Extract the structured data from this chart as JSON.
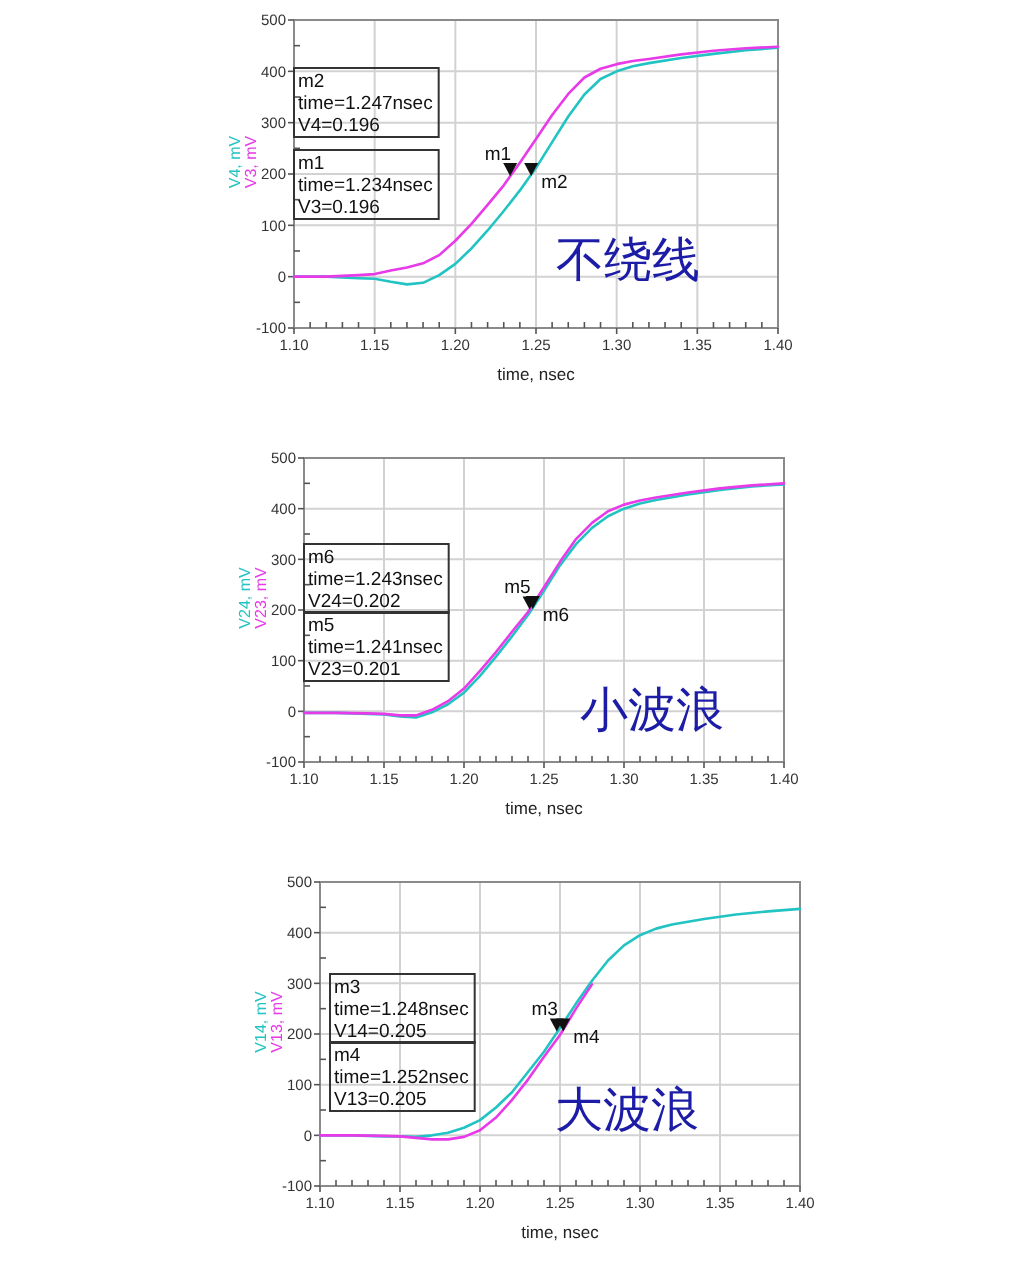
{
  "chart_data": [
    {
      "type": "line",
      "xlabel": "time, nsec",
      "legend": "left",
      "grid": true,
      "xlim": [
        1.1,
        1.4
      ],
      "ylim": [
        -100,
        500
      ],
      "xticks": [
        {
          "value": 1.1,
          "label": "1.10"
        },
        {
          "value": 1.11,
          "label": null
        },
        {
          "value": 1.12,
          "label": null
        },
        {
          "value": 1.13,
          "label": null
        },
        {
          "value": 1.14,
          "label": null
        },
        {
          "value": 1.15,
          "label": "1.15"
        },
        {
          "value": 1.16,
          "label": null
        },
        {
          "value": 1.17,
          "label": null
        },
        {
          "value": 1.18,
          "label": null
        },
        {
          "value": 1.19,
          "label": null
        },
        {
          "value": 1.2,
          "label": "1.20"
        },
        {
          "value": 1.21,
          "label": null
        },
        {
          "value": 1.22,
          "label": null
        },
        {
          "value": 1.23,
          "label": null
        },
        {
          "value": 1.24,
          "label": null
        },
        {
          "value": 1.25,
          "label": "1.25"
        },
        {
          "value": 1.26,
          "label": null
        },
        {
          "value": 1.27,
          "label": null
        },
        {
          "value": 1.28,
          "label": null
        },
        {
          "value": 1.29,
          "label": null
        },
        {
          "value": 1.3,
          "label": "1.30"
        },
        {
          "value": 1.31,
          "label": null
        },
        {
          "value": 1.32,
          "label": null
        },
        {
          "value": 1.33,
          "label": null
        },
        {
          "value": 1.34,
          "label": null
        },
        {
          "value": 1.35,
          "label": "1.35"
        },
        {
          "value": 1.36,
          "label": null
        },
        {
          "value": 1.37,
          "label": null
        },
        {
          "value": 1.38,
          "label": null
        },
        {
          "value": 1.39,
          "label": null
        },
        {
          "value": 1.4,
          "label": "1.40"
        }
      ],
      "yticks": [
        -100,
        {
          "value": -50,
          "label": null
        },
        0,
        {
          "value": 50,
          "label": null
        },
        100,
        {
          "value": 150,
          "label": null
        },
        200,
        {
          "value": 250,
          "label": null
        },
        300,
        {
          "value": 350,
          "label": null
        },
        400,
        {
          "value": 450,
          "label": null
        },
        500
      ],
      "x": [
        1.1,
        1.12,
        1.14,
        1.15,
        1.16,
        1.17,
        1.18,
        1.19,
        1.2,
        1.21,
        1.22,
        1.23,
        1.24,
        1.25,
        1.26,
        1.27,
        1.28,
        1.29,
        1.3,
        1.31,
        1.32,
        1.34,
        1.36,
        1.38,
        1.4
      ],
      "series": [
        {
          "name": "V4, mV",
          "color": "#22c3c3",
          "values": [
            0,
            0,
            -3,
            -4,
            -10,
            -15,
            -12,
            3,
            25,
            55,
            90,
            128,
            168,
            212,
            262,
            312,
            355,
            385,
            400,
            410,
            416,
            426,
            434,
            441,
            446
          ]
        },
        {
          "name": "V3, mV",
          "color": "#e83ae8",
          "values": [
            0,
            0,
            3,
            5,
            12,
            18,
            26,
            42,
            70,
            103,
            140,
            178,
            222,
            268,
            315,
            356,
            388,
            405,
            414,
            420,
            424,
            433,
            440,
            445,
            448
          ]
        }
      ],
      "annotations": [
        {
          "text": "m1",
          "x": 1.234,
          "y": 196
        },
        {
          "text": "m2",
          "x": 1.247,
          "y": 196
        },
        "m2\ntime=1.247nsec\nV4=0.196",
        "m1\ntime=1.234nsec\nV3=0.196",
        "不绕线"
      ]
    },
    {
      "type": "line",
      "xlabel": "time, nsec",
      "legend": "left",
      "grid": true,
      "xlim": [
        1.1,
        1.4
      ],
      "ylim": [
        -100,
        500
      ],
      "xticks": [
        {
          "value": 1.1,
          "label": "1.10"
        },
        {
          "value": 1.11,
          "label": null
        },
        {
          "value": 1.12,
          "label": null
        },
        {
          "value": 1.13,
          "label": null
        },
        {
          "value": 1.14,
          "label": null
        },
        {
          "value": 1.15,
          "label": "1.15"
        },
        {
          "value": 1.16,
          "label": null
        },
        {
          "value": 1.17,
          "label": null
        },
        {
          "value": 1.18,
          "label": null
        },
        {
          "value": 1.19,
          "label": null
        },
        {
          "value": 1.2,
          "label": "1.20"
        },
        {
          "value": 1.21,
          "label": null
        },
        {
          "value": 1.22,
          "label": null
        },
        {
          "value": 1.23,
          "label": null
        },
        {
          "value": 1.24,
          "label": null
        },
        {
          "value": 1.25,
          "label": "1.25"
        },
        {
          "value": 1.26,
          "label": null
        },
        {
          "value": 1.27,
          "label": null
        },
        {
          "value": 1.28,
          "label": null
        },
        {
          "value": 1.29,
          "label": null
        },
        {
          "value": 1.3,
          "label": "1.30"
        },
        {
          "value": 1.31,
          "label": null
        },
        {
          "value": 1.32,
          "label": null
        },
        {
          "value": 1.33,
          "label": null
        },
        {
          "value": 1.34,
          "label": null
        },
        {
          "value": 1.35,
          "label": "1.35"
        },
        {
          "value": 1.36,
          "label": null
        },
        {
          "value": 1.37,
          "label": null
        },
        {
          "value": 1.38,
          "label": null
        },
        {
          "value": 1.39,
          "label": null
        },
        {
          "value": 1.4,
          "label": "1.40"
        }
      ],
      "yticks": [
        -100,
        {
          "value": -50,
          "label": null
        },
        0,
        {
          "value": 50,
          "label": null
        },
        100,
        {
          "value": 150,
          "label": null
        },
        200,
        {
          "value": 250,
          "label": null
        },
        300,
        {
          "value": 350,
          "label": null
        },
        400,
        {
          "value": 450,
          "label": null
        },
        500
      ],
      "x": [
        1.1,
        1.12,
        1.14,
        1.15,
        1.16,
        1.17,
        1.18,
        1.19,
        1.2,
        1.21,
        1.22,
        1.23,
        1.24,
        1.25,
        1.26,
        1.27,
        1.28,
        1.29,
        1.3,
        1.31,
        1.32,
        1.34,
        1.36,
        1.38,
        1.4
      ],
      "series": [
        {
          "name": "V24, mV",
          "color": "#22c3c3",
          "values": [
            -3,
            -3,
            -5,
            -6,
            -10,
            -12,
            -2,
            14,
            37,
            70,
            108,
            148,
            190,
            238,
            288,
            330,
            362,
            385,
            400,
            410,
            417,
            428,
            437,
            444,
            448
          ]
        },
        {
          "name": "V23, mV",
          "color": "#e83ae8",
          "values": [
            -3,
            -3,
            -4,
            -5,
            -8,
            -8,
            3,
            20,
            45,
            80,
            117,
            157,
            196,
            245,
            295,
            340,
            372,
            395,
            408,
            416,
            422,
            432,
            440,
            446,
            450
          ]
        }
      ],
      "annotations": [
        {
          "text": "m5",
          "x": 1.241,
          "y": 201
        },
        {
          "text": "m6",
          "x": 1.243,
          "y": 202
        },
        "m6\ntime=1.243nsec\nV24=0.202",
        "m5\ntime=1.241nsec\nV23=0.201",
        "小波浪"
      ]
    },
    {
      "type": "line",
      "xlabel": "time, nsec",
      "legend": "left",
      "grid": true,
      "xlim": [
        1.1,
        1.4
      ],
      "ylim": [
        -100,
        500
      ],
      "xticks": [
        {
          "value": 1.1,
          "label": "1.10"
        },
        {
          "value": 1.11,
          "label": null
        },
        {
          "value": 1.12,
          "label": null
        },
        {
          "value": 1.13,
          "label": null
        },
        {
          "value": 1.14,
          "label": null
        },
        {
          "value": 1.15,
          "label": "1.15"
        },
        {
          "value": 1.16,
          "label": null
        },
        {
          "value": 1.17,
          "label": null
        },
        {
          "value": 1.18,
          "label": null
        },
        {
          "value": 1.19,
          "label": null
        },
        {
          "value": 1.2,
          "label": "1.20"
        },
        {
          "value": 1.21,
          "label": null
        },
        {
          "value": 1.22,
          "label": null
        },
        {
          "value": 1.23,
          "label": null
        },
        {
          "value": 1.24,
          "label": null
        },
        {
          "value": 1.25,
          "label": "1.25"
        },
        {
          "value": 1.26,
          "label": null
        },
        {
          "value": 1.27,
          "label": null
        },
        {
          "value": 1.28,
          "label": null
        },
        {
          "value": 1.29,
          "label": null
        },
        {
          "value": 1.3,
          "label": "1.30"
        },
        {
          "value": 1.31,
          "label": null
        },
        {
          "value": 1.32,
          "label": null
        },
        {
          "value": 1.33,
          "label": null
        },
        {
          "value": 1.34,
          "label": null
        },
        {
          "value": 1.35,
          "label": "1.35"
        },
        {
          "value": 1.36,
          "label": null
        },
        {
          "value": 1.37,
          "label": null
        },
        {
          "value": 1.38,
          "label": null
        },
        {
          "value": 1.39,
          "label": null
        },
        {
          "value": 1.4,
          "label": "1.40"
        }
      ],
      "yticks": [
        -100,
        {
          "value": -50,
          "label": null
        },
        0,
        {
          "value": 50,
          "label": null
        },
        100,
        {
          "value": 150,
          "label": null
        },
        200,
        {
          "value": 250,
          "label": null
        },
        300,
        {
          "value": 350,
          "label": null
        },
        400,
        {
          "value": 450,
          "label": null
        },
        500
      ],
      "x": [
        1.1,
        1.12,
        1.14,
        1.15,
        1.16,
        1.17,
        1.18,
        1.19,
        1.2,
        1.21,
        1.22,
        1.23,
        1.24,
        1.25,
        1.26,
        1.27,
        1.28,
        1.29,
        1.3,
        1.31,
        1.32,
        1.34,
        1.36,
        1.38,
        1.4
      ],
      "series": [
        {
          "name": "V14, mV",
          "color": "#22c3c3",
          "values": [
            0,
            0,
            -2,
            -2,
            -3,
            0,
            5,
            15,
            30,
            55,
            85,
            125,
            165,
            212,
            260,
            305,
            345,
            375,
            395,
            408,
            416,
            427,
            436,
            442,
            447
          ]
        },
        {
          "name": "V13, mV",
          "color": "#e83ae8",
          "values": [
            0,
            0,
            -1,
            -2,
            -5,
            -8,
            -8,
            -3,
            10,
            35,
            70,
            110,
            155,
            198,
            250,
            298,
            null,
            null,
            null,
            null,
            null,
            null,
            null,
            null,
            null
          ]
        }
      ],
      "annotations": [
        {
          "text": "m3",
          "x": 1.248,
          "y": 205
        },
        {
          "text": "m4",
          "x": 1.252,
          "y": 205
        },
        "m3\ntime=1.248nsec\nV14=0.205",
        "m4\ntime=1.252nsec\nV13=0.205",
        "大波浪"
      ]
    }
  ]
}
